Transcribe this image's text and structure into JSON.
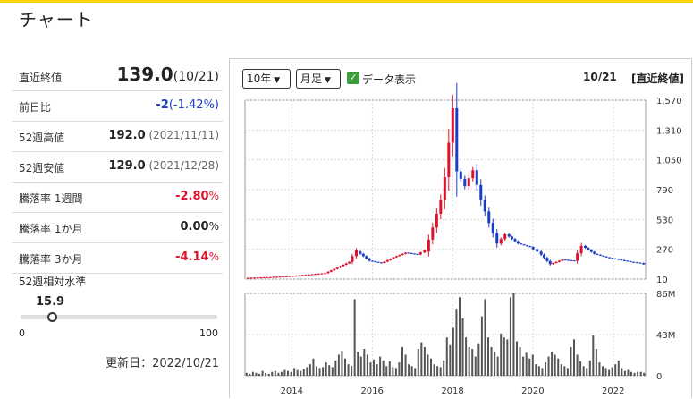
{
  "header": {
    "title": "チャート"
  },
  "stats": [
    {
      "label": "直近終値",
      "value": "139.0",
      "sub": "(10/21)"
    },
    {
      "label": "前日比",
      "value": "-2",
      "sub": "(-1.42%)"
    },
    {
      "label": "52週高値",
      "value": "192.0",
      "sub": "(2021/11/11)"
    },
    {
      "label": "52週安値",
      "value": "129.0",
      "sub": "(2021/12/28)"
    },
    {
      "label": "騰落率 1週間",
      "value": "-2.80",
      "sub": "%"
    },
    {
      "label": "騰落率 1か月",
      "value": "0.00",
      "sub": "%"
    },
    {
      "label": "騰落率 3か月",
      "value": "-4.14",
      "sub": "%"
    }
  ],
  "level": {
    "label": "52週相対水準",
    "value": "15.9",
    "min": "0",
    "max": "100"
  },
  "updated": "更新日：2022/10/21",
  "controls": {
    "period": "10年",
    "interval": "月足",
    "show_data": "データ表示",
    "date": "10/21",
    "recent": "[直近終値]"
  },
  "chart_data": [
    {
      "type": "candlestick",
      "title": "",
      "y_ticks": [
        10,
        270,
        530,
        790,
        1050,
        1310,
        1570
      ],
      "y_tick_labels": [
        "10",
        "270",
        "530",
        "790",
        "1,050",
        "1,310",
        "1,570"
      ],
      "ylim": [
        10,
        1570
      ],
      "x_ticks": [
        "2014",
        "2016",
        "2018",
        "2020",
        "2022"
      ],
      "x_range": [
        2012.83,
        2022.8
      ],
      "candles": [
        {
          "t": 2012.9,
          "o": 20,
          "c": 24
        },
        {
          "t": 2013.3,
          "o": 24,
          "c": 30
        },
        {
          "t": 2013.7,
          "o": 30,
          "c": 38
        },
        {
          "t": 2014.1,
          "o": 38,
          "c": 50
        },
        {
          "t": 2014.5,
          "o": 50,
          "c": 62
        },
        {
          "t": 2014.9,
          "o": 62,
          "c": 110
        },
        {
          "t": 2015.2,
          "o": 110,
          "c": 160
        },
        {
          "t": 2015.5,
          "o": 160,
          "c": 260
        },
        {
          "t": 2015.7,
          "o": 250,
          "c": 170
        },
        {
          "t": 2016.0,
          "o": 170,
          "c": 150
        },
        {
          "t": 2016.3,
          "o": 150,
          "c": 200
        },
        {
          "t": 2016.6,
          "o": 200,
          "c": 240
        },
        {
          "t": 2016.9,
          "o": 240,
          "c": 225
        },
        {
          "t": 2017.2,
          "o": 225,
          "c": 260
        },
        {
          "t": 2017.4,
          "o": 250,
          "c": 460
        },
        {
          "t": 2017.6,
          "o": 460,
          "c": 700
        },
        {
          "t": 2017.8,
          "o": 700,
          "c": 900
        },
        {
          "t": 2017.9,
          "o": 900,
          "c": 1500
        },
        {
          "t": 2018.1,
          "o": 1500,
          "c": 950
        },
        {
          "t": 2018.2,
          "o": 950,
          "c": 820
        },
        {
          "t": 2018.4,
          "o": 820,
          "c": 960
        },
        {
          "t": 2018.6,
          "o": 960,
          "c": 700
        },
        {
          "t": 2018.8,
          "o": 700,
          "c": 500
        },
        {
          "t": 2019.0,
          "o": 500,
          "c": 320
        },
        {
          "t": 2019.2,
          "o": 320,
          "c": 400
        },
        {
          "t": 2019.4,
          "o": 400,
          "c": 320
        },
        {
          "t": 2019.7,
          "o": 320,
          "c": 290
        },
        {
          "t": 2020.0,
          "o": 290,
          "c": 250
        },
        {
          "t": 2020.2,
          "o": 250,
          "c": 140
        },
        {
          "t": 2020.5,
          "o": 140,
          "c": 180
        },
        {
          "t": 2020.8,
          "o": 180,
          "c": 170
        },
        {
          "t": 2021.1,
          "o": 170,
          "c": 300
        },
        {
          "t": 2021.3,
          "o": 300,
          "c": 230
        },
        {
          "t": 2021.6,
          "o": 230,
          "c": 200
        },
        {
          "t": 2021.9,
          "o": 200,
          "c": 180
        },
        {
          "t": 2022.2,
          "o": 180,
          "c": 160
        },
        {
          "t": 2022.5,
          "o": 160,
          "c": 150
        },
        {
          "t": 2022.75,
          "o": 150,
          "c": 139
        }
      ]
    },
    {
      "type": "bar",
      "title": "",
      "y_ticks": [
        0,
        43,
        86
      ],
      "y_tick_labels": [
        "0",
        "43M",
        "86M"
      ],
      "ylim": [
        0,
        86
      ],
      "unit": "M",
      "x_range": [
        2012.83,
        2022.8
      ],
      "values": [
        3,
        2,
        4,
        3,
        2,
        5,
        3,
        2,
        4,
        5,
        3,
        4,
        6,
        5,
        4,
        8,
        6,
        5,
        7,
        9,
        12,
        18,
        10,
        8,
        9,
        14,
        11,
        9,
        16,
        22,
        26,
        18,
        12,
        10,
        80,
        25,
        20,
        28,
        22,
        14,
        17,
        12,
        20,
        16,
        10,
        15,
        9,
        8,
        14,
        30,
        22,
        12,
        10,
        8,
        28,
        35,
        30,
        22,
        18,
        12,
        10,
        9,
        16,
        40,
        32,
        50,
        70,
        82,
        60,
        40,
        30,
        28,
        20,
        34,
        62,
        80,
        40,
        30,
        25,
        20,
        44,
        40,
        38,
        82,
        86,
        36,
        30,
        20,
        24,
        18,
        22,
        12,
        10,
        8,
        14,
        20,
        25,
        22,
        18,
        12,
        10,
        8,
        30,
        38,
        22,
        15,
        10,
        8,
        16,
        42,
        28,
        14,
        10,
        8,
        6,
        9,
        12,
        16,
        8,
        5,
        6,
        4,
        3,
        4,
        4,
        3
      ]
    }
  ]
}
